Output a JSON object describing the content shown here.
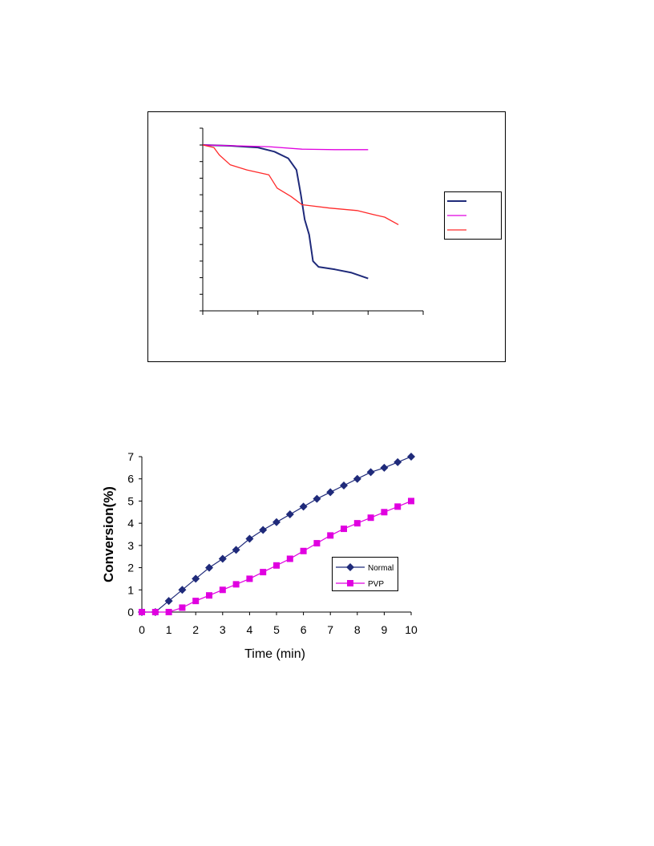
{
  "chart_data": [
    {
      "type": "line",
      "title": "",
      "xlabel": "",
      "ylabel": "",
      "xlim": [
        0,
        4
      ],
      "ylim": [
        0,
        10
      ],
      "x_ticks": [
        0,
        1,
        2,
        3,
        4
      ],
      "y_ticks": [
        0,
        1,
        2,
        3,
        4,
        5,
        6,
        7,
        8,
        9,
        10
      ],
      "tick_labels_shown": false,
      "grid": false,
      "legend": "right",
      "series": [
        {
          "color": "#1f2a7a",
          "points": [
            [
              0.0,
              10.0
            ],
            [
              0.5,
              9.95
            ],
            [
              1.0,
              9.85
            ],
            [
              1.3,
              9.6
            ],
            [
              1.55,
              9.2
            ],
            [
              1.7,
              8.5
            ],
            [
              1.78,
              7.0
            ],
            [
              1.85,
              5.5
            ],
            [
              1.93,
              4.6
            ],
            [
              2.0,
              3.0
            ],
            [
              2.1,
              2.65
            ],
            [
              2.4,
              2.5
            ],
            [
              2.7,
              2.3
            ],
            [
              3.0,
              1.95
            ]
          ]
        },
        {
          "color": "#e000e0",
          "points": [
            [
              0.0,
              10.0
            ],
            [
              0.6,
              9.95
            ],
            [
              1.2,
              9.9
            ],
            [
              1.8,
              9.75
            ],
            [
              2.4,
              9.72
            ],
            [
              3.0,
              9.72
            ]
          ]
        },
        {
          "color": "#ff2a2a",
          "points": [
            [
              0.0,
              10.0
            ],
            [
              0.2,
              9.85
            ],
            [
              0.3,
              9.4
            ],
            [
              0.5,
              8.8
            ],
            [
              0.8,
              8.5
            ],
            [
              1.2,
              8.2
            ],
            [
              1.35,
              7.4
            ],
            [
              1.6,
              6.9
            ],
            [
              1.8,
              6.4
            ],
            [
              2.3,
              6.2
            ],
            [
              2.8,
              6.05
            ],
            [
              3.1,
              5.8
            ],
            [
              3.3,
              5.65
            ],
            [
              3.55,
              5.2
            ]
          ]
        }
      ]
    },
    {
      "type": "line",
      "title": "",
      "xlabel": "Time (min)",
      "ylabel": "Conversion(%)",
      "xlim": [
        0,
        10
      ],
      "ylim": [
        0,
        7
      ],
      "x_ticks": [
        "0",
        "1",
        "2",
        "3",
        "4",
        "5",
        "6",
        "7",
        "8",
        "9",
        "10"
      ],
      "y_ticks": [
        "0",
        "1",
        "2",
        "3",
        "4",
        "5",
        "6",
        "7"
      ],
      "grid": false,
      "legend": "bottom-right",
      "series": [
        {
          "name": "Normal",
          "color": "#1f2a7a",
          "marker": "diamond",
          "x": [
            0,
            0.5,
            1,
            1.5,
            2,
            2.5,
            3,
            3.5,
            4,
            4.5,
            5,
            5.5,
            6,
            6.5,
            7,
            7.5,
            8,
            8.5,
            9,
            9.5,
            10
          ],
          "y": [
            0,
            0,
            0.5,
            1.0,
            1.5,
            2.0,
            2.4,
            2.8,
            3.3,
            3.7,
            4.05,
            4.4,
            4.75,
            5.1,
            5.4,
            5.7,
            6.0,
            6.3,
            6.5,
            6.75,
            7.0
          ]
        },
        {
          "name": "PVP",
          "color": "#e000e0",
          "marker": "square",
          "x": [
            0,
            0.5,
            1,
            1.5,
            2,
            2.5,
            3,
            3.5,
            4,
            4.5,
            5,
            5.5,
            6,
            6.5,
            7,
            7.5,
            8,
            8.5,
            9,
            9.5,
            10
          ],
          "y": [
            0,
            0,
            0,
            0.2,
            0.5,
            0.75,
            1.0,
            1.25,
            1.5,
            1.8,
            2.1,
            2.4,
            2.75,
            3.1,
            3.45,
            3.75,
            4.0,
            4.25,
            4.5,
            4.75,
            5.0
          ]
        }
      ]
    }
  ]
}
